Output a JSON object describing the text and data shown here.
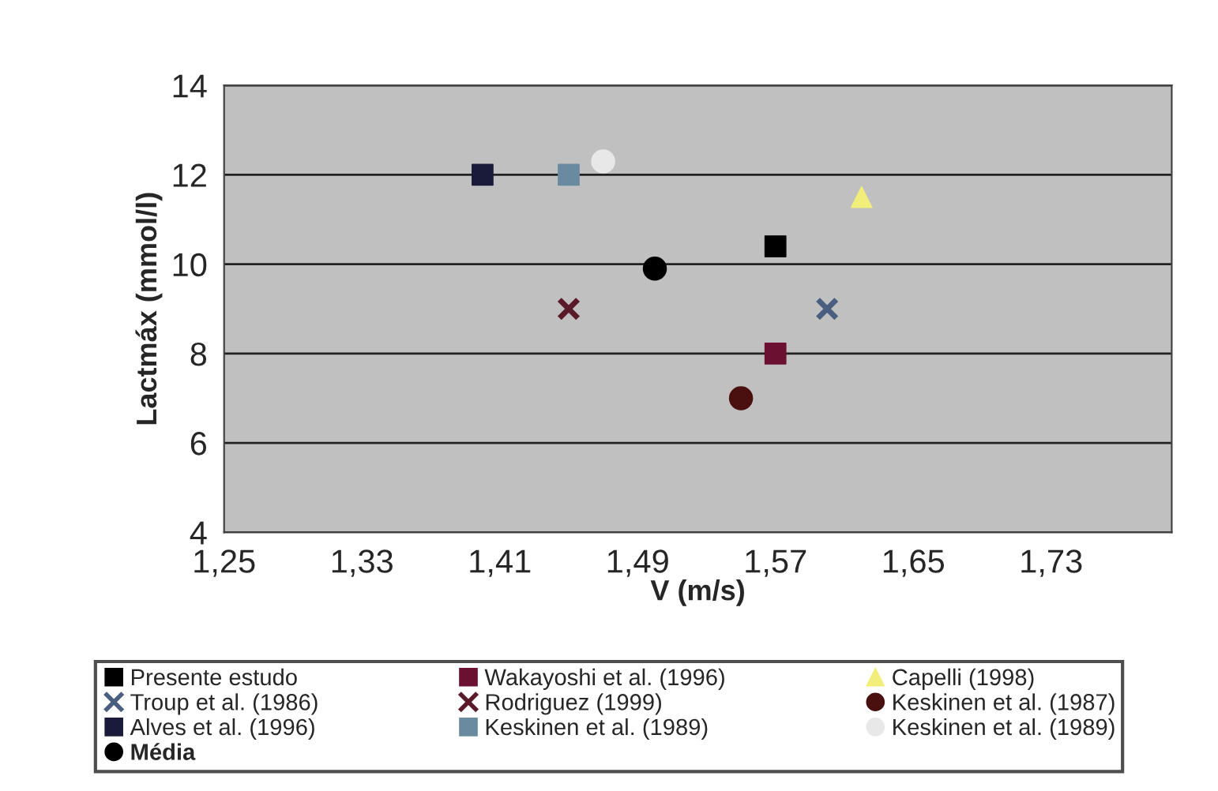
{
  "chart_data": {
    "type": "scatter",
    "xlabel": "V (m/s)",
    "ylabel": "Lactmáx (mmol/l)",
    "xlim": [
      1.25,
      1.8
    ],
    "xticks": [
      {
        "value": 1.25,
        "label": "1,25"
      },
      {
        "value": 1.33,
        "label": "1,33"
      },
      {
        "value": 1.41,
        "label": "1,41"
      },
      {
        "value": 1.49,
        "label": "1,49"
      },
      {
        "value": 1.57,
        "label": "1,57"
      },
      {
        "value": 1.65,
        "label": "1,65"
      },
      {
        "value": 1.73,
        "label": "1,73"
      }
    ],
    "ylim": [
      4,
      14
    ],
    "yticks": [
      4,
      6,
      8,
      10,
      12,
      14
    ],
    "grid": "y",
    "legend": "bottom",
    "series": [
      {
        "name": "Presente estudo",
        "color": "#000000",
        "marker": "square",
        "x": [
          1.57
        ],
        "values": [
          10.4
        ]
      },
      {
        "name": "Wakayoshi et al. (1996)",
        "color": "#6b1030",
        "marker": "square",
        "x": [
          1.57
        ],
        "values": [
          8.0
        ]
      },
      {
        "name": "Capelli (1998)",
        "color": "#f2ee7a",
        "marker": "triangle",
        "x": [
          1.62
        ],
        "values": [
          11.5
        ]
      },
      {
        "name": "Troup et al. (1986)",
        "color": "#4a5f80",
        "marker": "cross",
        "x": [
          1.6
        ],
        "values": [
          9.0
        ]
      },
      {
        "name": "Rodriguez (1999)",
        "color": "#5a1a2a",
        "marker": "cross",
        "x": [
          1.45
        ],
        "values": [
          9.0
        ]
      },
      {
        "name": "Keskinen et al. (1987)",
        "color": "#4a1010",
        "marker": "circle",
        "x": [
          1.55
        ],
        "values": [
          7.0
        ]
      },
      {
        "name": "Alves et al. (1996)",
        "color": "#1a1a3a",
        "marker": "square",
        "x": [
          1.4
        ],
        "values": [
          12.0
        ]
      },
      {
        "name": "Keskinen et al. (1989)",
        "color": "#6a8aa0",
        "marker": "square",
        "x": [
          1.45
        ],
        "values": [
          12.0
        ]
      },
      {
        "name": "Keskinen et al. (1989)",
        "color": "#e8e8e8",
        "marker": "circle",
        "x": [
          1.47
        ],
        "values": [
          12.3
        ]
      },
      {
        "name": "Média",
        "color": "#000000",
        "marker": "circle",
        "x": [
          1.5
        ],
        "values": [
          9.9
        ]
      }
    ]
  }
}
